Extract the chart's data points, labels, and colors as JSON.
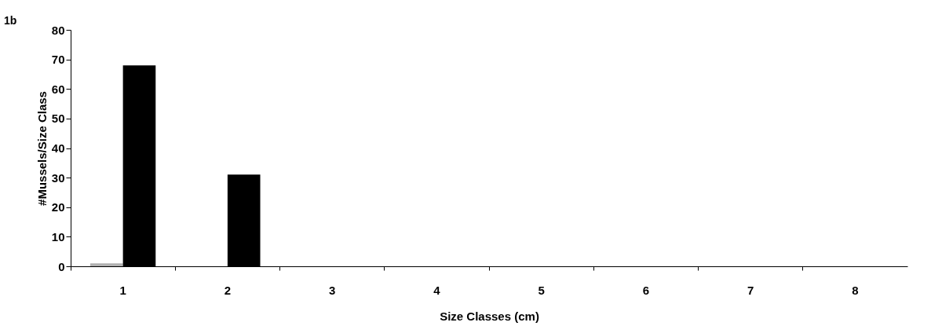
{
  "chart_data": {
    "type": "bar",
    "xlabel": "Size Classes (cm)",
    "ylabel": "#Mussels/Size Class",
    "annotations": [
      "1b"
    ],
    "categories": [
      "1",
      "2",
      "3",
      "4",
      "5",
      "6",
      "7",
      "8"
    ],
    "series": [
      {
        "color": "#b0b0b0",
        "values": [
          1,
          0,
          0,
          0,
          0,
          0,
          0,
          0
        ]
      },
      {
        "color": "#000000",
        "values": [
          68,
          31,
          0,
          0,
          0,
          0,
          0,
          0
        ]
      }
    ],
    "ylim": [
      0,
      80
    ],
    "yticks": [
      0,
      10,
      20,
      30,
      40,
      50,
      60,
      70,
      80
    ],
    "grid": false,
    "legend": false
  }
}
